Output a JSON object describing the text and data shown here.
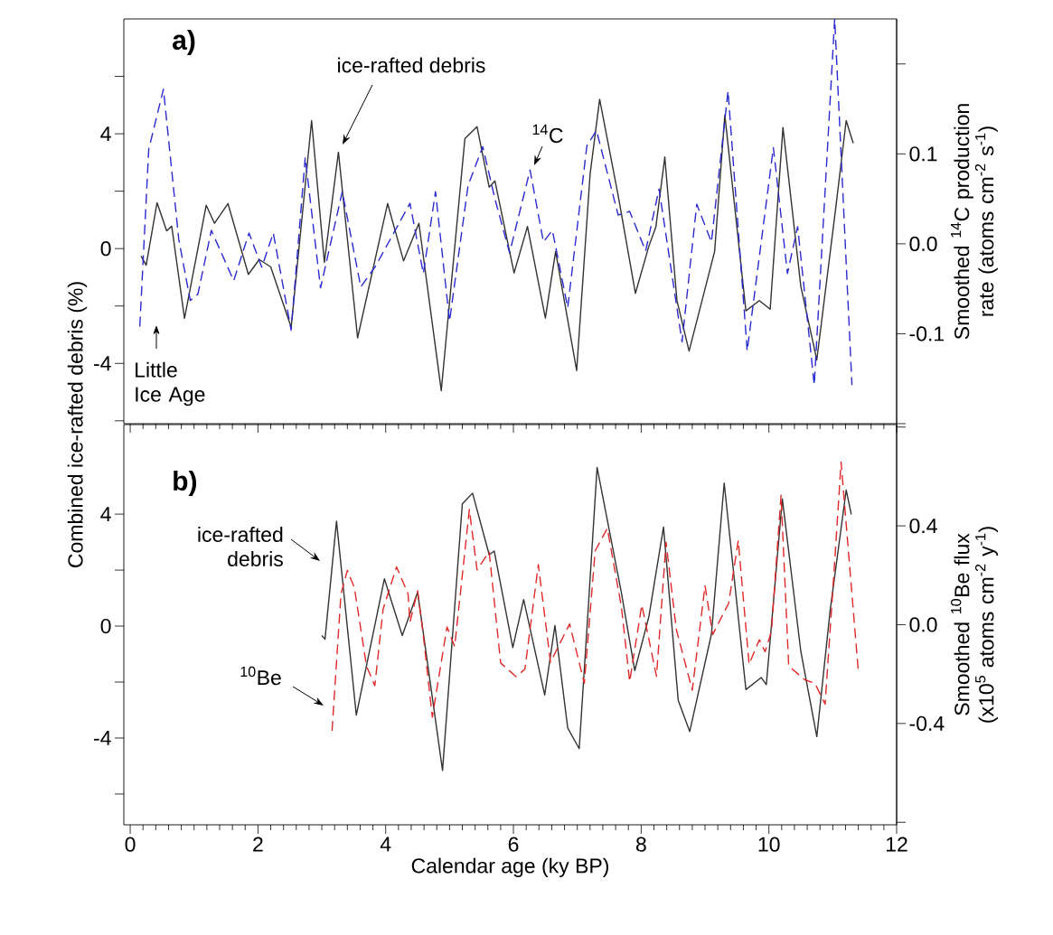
{
  "chart_data": [
    {
      "type": "line",
      "tick_labels": "y",
      "xlim": [
        -0.1,
        12
      ],
      "xticks": [
        0,
        2,
        4,
        6,
        8,
        10,
        12
      ],
      "ylim": [
        -6.1,
        8
      ],
      "yticks": [
        {
          "value": -6,
          "label": null
        },
        -4,
        {
          "value": -2,
          "label": null
        },
        0,
        {
          "value": 2,
          "label": null
        },
        4,
        {
          "value": 6,
          "label": null
        }
      ],
      "y2label": "Smoothed $^{14}$C production rate (atoms cm$^{-2}$ s$^{-1}$)",
      "y2lim": [
        -0.2,
        0.25
      ],
      "y2ticks": [
        {
          "value": -0.2,
          "label": null
        },
        -0.1,
        {
          "value": 0,
          "label": "0.0"
        },
        0.1,
        {
          "value": 0.2,
          "label": null
        }
      ],
      "annotations": [
        "a)",
        "Little Ice Age"
      ],
      "series": [
        {
          "name": "ice-rafted debris",
          "color": "#333333",
          "line_style": "solid",
          "x": [
            0.17,
            0.25,
            0.42,
            0.57,
            0.65,
            0.85,
            1.19,
            1.32,
            1.53,
            1.85,
            2.02,
            2.2,
            2.52,
            2.84,
            3.04,
            3.26,
            3.56,
            4.03,
            4.28,
            4.52,
            4.87,
            5.24,
            5.43,
            5.62,
            5.71,
            6.01,
            6.22,
            6.5,
            6.66,
            6.99,
            7.2,
            7.35,
            7.64,
            7.91,
            8.12,
            8.23,
            8.37,
            8.56,
            8.75,
            9.15,
            9.31,
            9.64,
            9.85,
            10.02,
            10.22,
            10.5,
            10.75,
            11.05,
            11.21,
            11.32
          ],
          "values": [
            -0.26,
            -0.58,
            1.6,
            0.62,
            0.78,
            -2.43,
            1.51,
            0.88,
            1.57,
            -0.9,
            -0.38,
            -0.64,
            -2.74,
            4.46,
            -0.48,
            3.36,
            -3.11,
            1.57,
            -0.43,
            0.88,
            -4.95,
            3.83,
            4.25,
            2.14,
            2.36,
            -0.85,
            0.77,
            -2.42,
            -0.1,
            -4.25,
            2.58,
            5.2,
            1.85,
            -1.56,
            0.08,
            0.75,
            3.19,
            -1.81,
            -3.57,
            -0.1,
            4.65,
            -2.17,
            -1.81,
            -2.11,
            4.22,
            -1.32,
            -3.88,
            1.48,
            4.46,
            3.67
          ]
        },
        {
          "name": "$^{14}$C",
          "color": "#2a2ad0",
          "line_style": "dashed",
          "axis": "y2",
          "x": [
            0.15,
            0.29,
            0.52,
            0.76,
            0.94,
            1.06,
            1.27,
            1.62,
            1.86,
            2.06,
            2.24,
            2.52,
            2.74,
            2.98,
            3.32,
            3.61,
            3.84,
            4.38,
            4.59,
            4.78,
            5.0,
            5.29,
            5.52,
            5.71,
            5.94,
            6.26,
            6.47,
            6.61,
            6.85,
            7.15,
            7.3,
            7.64,
            7.82,
            8.07,
            8.28,
            8.64,
            8.87,
            9.1,
            9.36,
            9.66,
            10.07,
            10.29,
            10.45,
            10.71,
            11.03,
            11.3
          ],
          "values": [
            -0.092,
            0.105,
            0.172,
            0.005,
            -0.063,
            -0.056,
            0.015,
            -0.041,
            0.012,
            -0.026,
            0.012,
            -0.096,
            0.096,
            -0.049,
            0.058,
            -0.048,
            -0.025,
            0.045,
            -0.033,
            0.058,
            -0.086,
            0.065,
            0.108,
            0.05,
            -0.01,
            0.082,
            0.002,
            0.015,
            -0.071,
            0.109,
            0.126,
            0.032,
            0.036,
            -0.008,
            0.061,
            -0.109,
            0.044,
            0.002,
            0.17,
            -0.119,
            0.107,
            -0.033,
            0.019,
            -0.157,
            0.25,
            -0.157
          ]
        }
      ]
    },
    {
      "type": "line",
      "xlabel": "Calendar age (ky BP)",
      "ylabel": "Combined ice-rafted debris (%)",
      "xlim": [
        -0.1,
        12
      ],
      "xticks": [
        0,
        2,
        4,
        6,
        8,
        10,
        12
      ],
      "ylim": [
        -7.1,
        7.2
      ],
      "yticks": [
        {
          "value": -6,
          "label": null
        },
        -4,
        {
          "value": -2,
          "label": null
        },
        0,
        {
          "value": 2,
          "label": null
        },
        4
      ],
      "y2label": "Smoothed $^{10}$Be flux (x10$^{5}$ atoms cm$^{-2}$ y$^{-1}$)",
      "y2lim": [
        -0.81,
        0.81
      ],
      "y2ticks": [
        {
          "value": -0.8,
          "label": null
        },
        -0.4,
        {
          "value": 0,
          "label": "0.0"
        },
        0.4,
        {
          "value": 0.8,
          "label": null
        }
      ],
      "annotations": [
        "b)"
      ],
      "series": [
        {
          "name": "ice-rafted debris",
          "color": "#333333",
          "line_style": "solid",
          "x": [
            3.0,
            3.05,
            3.23,
            3.54,
            3.98,
            4.26,
            4.5,
            4.89,
            5.2,
            5.36,
            5.62,
            5.7,
            5.99,
            6.16,
            6.49,
            6.65,
            6.85,
            7.03,
            7.18,
            7.31,
            7.69,
            7.9,
            8.12,
            8.35,
            8.58,
            8.76,
            9.1,
            9.3,
            9.64,
            9.88,
            9.96,
            10.21,
            10.5,
            10.75,
            10.96,
            11.21,
            11.29
          ],
          "values": [
            -0.34,
            -0.47,
            3.75,
            -3.18,
            1.69,
            -0.34,
            1.21,
            -5.16,
            4.37,
            4.75,
            2.55,
            2.68,
            -0.77,
            0.95,
            -2.46,
            0.02,
            -3.64,
            -4.38,
            0.95,
            5.67,
            1.2,
            -1.59,
            0.33,
            3.54,
            -2.65,
            -3.77,
            -0.29,
            5.11,
            -2.27,
            -1.84,
            -2.09,
            4.55,
            -0.91,
            -3.95,
            0.58,
            4.86,
            3.99
          ]
        },
        {
          "name": "$^{10}$Be",
          "color": "#e02828",
          "line_style": "dashed",
          "axis": "y2",
          "x": [
            3.16,
            3.3,
            3.4,
            3.51,
            3.7,
            3.83,
            3.96,
            4.17,
            4.35,
            4.38,
            4.5,
            4.59,
            4.73,
            4.96,
            5.08,
            5.31,
            5.43,
            5.62,
            5.8,
            6.04,
            6.18,
            6.39,
            6.58,
            6.88,
            7.11,
            7.28,
            7.47,
            7.69,
            7.82,
            8.01,
            8.24,
            8.39,
            8.55,
            8.8,
            9.0,
            9.12,
            9.37,
            9.52,
            9.69,
            9.85,
            9.94,
            10.04,
            10.19,
            10.31,
            10.56,
            10.72,
            10.88,
            11.02,
            11.13,
            11.4
          ],
          "values": [
            -0.43,
            0.125,
            0.22,
            0.15,
            -0.168,
            -0.247,
            0.064,
            0.234,
            0.125,
            0.01,
            0.137,
            -0.046,
            -0.374,
            -0.009,
            -0.088,
            0.466,
            0.222,
            0.295,
            -0.155,
            -0.21,
            -0.18,
            0.243,
            -0.152,
            0.003,
            -0.237,
            0.299,
            0.39,
            0.073,
            -0.23,
            0.08,
            -0.209,
            0.334,
            -0.019,
            -0.265,
            0.158,
            -0.04,
            0.087,
            0.341,
            -0.16,
            -0.061,
            -0.11,
            -0.026,
            0.524,
            -0.167,
            -0.223,
            -0.237,
            -0.322,
            0.214,
            0.658,
            -0.188
          ]
        }
      ]
    }
  ]
}
